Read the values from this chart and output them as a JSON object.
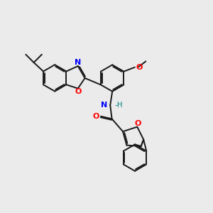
{
  "bg_color": "#ebebeb",
  "bond_color": "#1a1a1a",
  "N_color": "#0000ff",
  "O_color": "#ff0000",
  "NH_H_color": "#008080",
  "figsize": [
    3.0,
    3.0
  ],
  "dpi": 100,
  "xlim": [
    0,
    10
  ],
  "ylim": [
    0,
    10
  ],
  "lw": 1.4,
  "r": 0.62
}
